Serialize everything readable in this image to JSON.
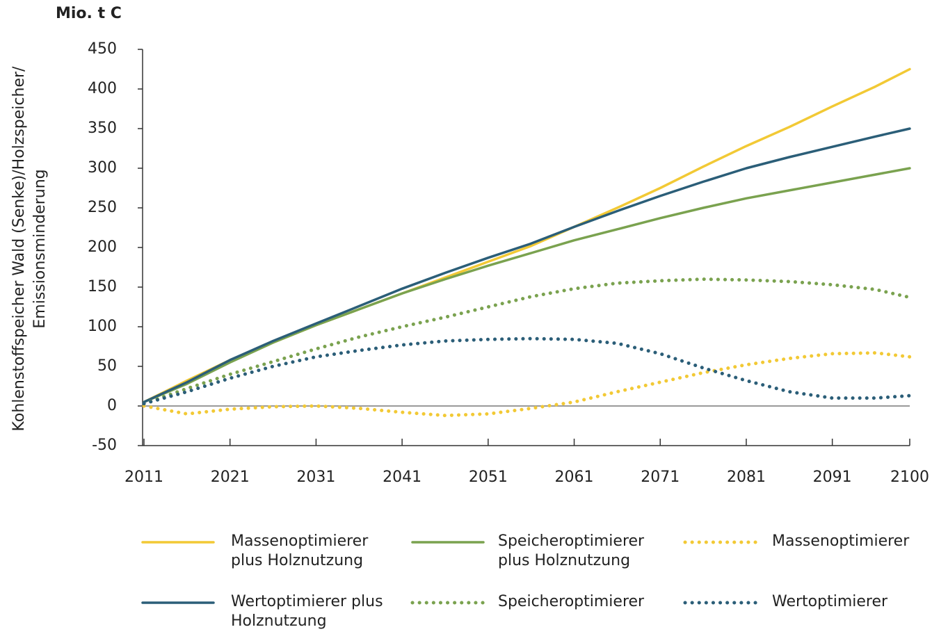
{
  "chart_data": {
    "type": "line",
    "unit_label": "Mio. t C",
    "y_label": [
      "Kohlenstoffspeicher Wald (Senke)/Holzspeicher/",
      "Emissionsminderung"
    ],
    "x": [
      2011,
      2016,
      2021,
      2026,
      2031,
      2036,
      2041,
      2046,
      2051,
      2056,
      2061,
      2066,
      2071,
      2076,
      2081,
      2086,
      2091,
      2096,
      2100
    ],
    "xlim": [
      2011,
      2100
    ],
    "xticks": [
      2011,
      2021,
      2031,
      2041,
      2051,
      2061,
      2071,
      2081,
      2091,
      2100
    ],
    "ylim": [
      -50,
      450
    ],
    "yticks": [
      -50,
      0,
      50,
      100,
      150,
      200,
      250,
      300,
      350,
      400,
      450
    ],
    "zero_line_color": "#9a9a9a",
    "series": [
      {
        "name": "Massenoptimierer plus Holznutzung",
        "color": "#f2c935",
        "style": "solid",
        "values": [
          5,
          32,
          58,
          80,
          102,
          122,
          142,
          162,
          182,
          202,
          226,
          250,
          275,
          302,
          328,
          352,
          378,
          403,
          425
        ]
      },
      {
        "name": "Speicheroptimierer plus Holznutzung",
        "color": "#7aa24f",
        "style": "solid",
        "values": [
          5,
          28,
          55,
          80,
          102,
          122,
          142,
          160,
          177,
          193,
          209,
          223,
          237,
          250,
          262,
          272,
          282,
          292,
          300
        ]
      },
      {
        "name": "Massenoptimierer",
        "color": "#f2c935",
        "style": "dotted",
        "values": [
          0,
          -10,
          -4,
          -1,
          0,
          -3,
          -8,
          -12,
          -10,
          -3,
          5,
          18,
          30,
          42,
          52,
          60,
          66,
          67,
          62
        ]
      },
      {
        "name": "Wertoptimierer plus Holznutzung",
        "color": "#2b5e78",
        "style": "solid",
        "values": [
          5,
          30,
          58,
          82,
          104,
          126,
          148,
          168,
          187,
          205,
          226,
          246,
          265,
          283,
          300,
          314,
          327,
          340,
          350
        ]
      },
      {
        "name": "Speicheroptimierer",
        "color": "#7aa24f",
        "style": "dotted",
        "values": [
          3,
          22,
          40,
          56,
          72,
          87,
          100,
          112,
          125,
          138,
          148,
          155,
          158,
          160,
          159,
          157,
          153,
          147,
          137
        ]
      },
      {
        "name": "Wertoptimierer",
        "color": "#2b5e78",
        "style": "dotted",
        "values": [
          3,
          18,
          35,
          50,
          62,
          70,
          77,
          82,
          84,
          85,
          84,
          79,
          66,
          48,
          32,
          18,
          10,
          10,
          13
        ]
      }
    ]
  }
}
